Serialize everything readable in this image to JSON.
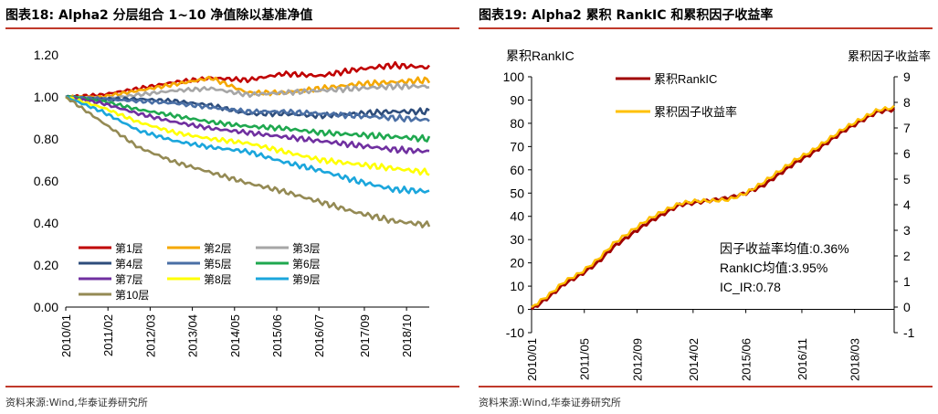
{
  "left_panel": {
    "title": "图表18:   Alpha2 分层组合 1~10 净值除以基准净值",
    "source": "资料来源:Wind,华泰证券研究所"
  },
  "right_panel": {
    "title": "图表19:   Alpha2 累积 RankIC 和累积因子收益率",
    "source": "资料来源:Wind,华泰证券研究所"
  },
  "chart_data": [
    {
      "type": "line",
      "title": "Alpha2 分层组合 1~10 净值除以基准净值",
      "xlabel": "",
      "ylabel": "",
      "ylim": [
        0.0,
        1.2
      ],
      "y_ticks": [
        "0.00",
        "0.20",
        "0.40",
        "0.60",
        "0.80",
        "1.00",
        "1.20"
      ],
      "x_ticks": [
        "2010/01",
        "2011/02",
        "2012/03",
        "2013/04",
        "2014/05",
        "2015/06",
        "2016/07",
        "2017/09",
        "2018/10"
      ],
      "x_tick_positions": [
        0,
        13,
        26,
        39,
        52,
        65,
        78,
        92,
        105
      ],
      "x_max": 112,
      "legend_position": "lower-left",
      "series": [
        {
          "name": "第1层",
          "color": "#c00000",
          "values": [
            1.0,
            1.01,
            1.04,
            1.07,
            1.09,
            1.08,
            1.11,
            1.1,
            1.13,
            1.15,
            1.14
          ]
        },
        {
          "name": "第2层",
          "color": "#f5a800",
          "values": [
            1.0,
            1.0,
            1.03,
            1.06,
            1.09,
            1.02,
            1.02,
            1.04,
            1.06,
            1.07,
            1.08
          ]
        },
        {
          "name": "第3层",
          "color": "#a6a6a6",
          "values": [
            1.0,
            0.99,
            1.01,
            1.03,
            1.04,
            1.01,
            1.02,
            1.03,
            1.04,
            1.05,
            1.05
          ]
        },
        {
          "name": "第4层",
          "color": "#2e4d7b",
          "values": [
            1.0,
            0.99,
            0.99,
            0.98,
            0.96,
            0.92,
            0.92,
            0.91,
            0.92,
            0.93,
            0.93
          ]
        },
        {
          "name": "第5层",
          "color": "#4a6fa5",
          "values": [
            1.0,
            0.99,
            0.98,
            0.97,
            0.95,
            0.93,
            0.93,
            0.92,
            0.91,
            0.9,
            0.89
          ]
        },
        {
          "name": "第6层",
          "color": "#1fa84f",
          "values": [
            1.0,
            0.98,
            0.94,
            0.91,
            0.88,
            0.86,
            0.85,
            0.83,
            0.82,
            0.81,
            0.8
          ]
        },
        {
          "name": "第7层",
          "color": "#7030a0",
          "values": [
            1.0,
            0.97,
            0.92,
            0.88,
            0.85,
            0.83,
            0.81,
            0.79,
            0.77,
            0.75,
            0.74
          ]
        },
        {
          "name": "第8层",
          "color": "#ffff00",
          "values": [
            1.0,
            0.95,
            0.88,
            0.83,
            0.8,
            0.78,
            0.74,
            0.7,
            0.68,
            0.66,
            0.64
          ]
        },
        {
          "name": "第9层",
          "color": "#1ba6dc",
          "values": [
            1.0,
            0.93,
            0.84,
            0.79,
            0.76,
            0.74,
            0.69,
            0.65,
            0.6,
            0.56,
            0.55
          ]
        },
        {
          "name": "第10层",
          "color": "#948a54",
          "values": [
            1.0,
            0.88,
            0.76,
            0.69,
            0.64,
            0.59,
            0.55,
            0.5,
            0.45,
            0.41,
            0.39
          ]
        }
      ]
    },
    {
      "type": "line",
      "title": "Alpha2 累积 RankIC 和累积因子收益率",
      "ylabel_left": "累积RankIC",
      "ylabel_right": "累积因子收益率",
      "ylim_left": [
        -10,
        100
      ],
      "ylim_right": [
        -1,
        9
      ],
      "y_ticks_left": [
        "-10",
        "0",
        "10",
        "20",
        "30",
        "40",
        "50",
        "60",
        "70",
        "80",
        "90",
        "100"
      ],
      "y_ticks_right": [
        "-1",
        "0",
        "1",
        "2",
        "3",
        "4",
        "5",
        "6",
        "7",
        "8",
        "9"
      ],
      "x_ticks": [
        "2010/01",
        "2011/05",
        "2012/09",
        "2014/02",
        "2015/06",
        "2016/11",
        "2018/03"
      ],
      "x_tick_positions": [
        0,
        16,
        32,
        49,
        65,
        82,
        98
      ],
      "x_max": 110,
      "legend_position": "top-left",
      "series": [
        {
          "name": "累积RankIC",
          "axis": "left",
          "color": "#a00000",
          "x": [
            0,
            5,
            10,
            15,
            20,
            25,
            30,
            35,
            40,
            45,
            50,
            55,
            60,
            65,
            70,
            75,
            80,
            85,
            90,
            95,
            100,
            105,
            110
          ],
          "values": [
            0,
            5,
            11,
            15,
            20,
            27,
            32,
            37,
            41,
            45,
            46,
            47,
            48,
            50,
            53,
            58,
            63,
            67,
            72,
            77,
            81,
            85,
            86
          ]
        },
        {
          "name": "累积因子收益率",
          "axis": "right",
          "color": "#ffc000",
          "x": [
            0,
            5,
            10,
            15,
            20,
            25,
            30,
            35,
            40,
            45,
            50,
            55,
            60,
            65,
            70,
            75,
            80,
            85,
            90,
            95,
            100,
            105,
            110
          ],
          "values": [
            0,
            0.45,
            1.0,
            1.35,
            1.85,
            2.5,
            2.95,
            3.4,
            3.75,
            4.05,
            4.15,
            4.15,
            4.2,
            4.45,
            4.85,
            5.3,
            5.75,
            6.1,
            6.55,
            7.0,
            7.35,
            7.7,
            7.8
          ]
        }
      ],
      "annotations": [
        "因子收益率均值:0.36%",
        "RankIC均值:3.95%",
        "IC_IR:0.78"
      ]
    }
  ]
}
